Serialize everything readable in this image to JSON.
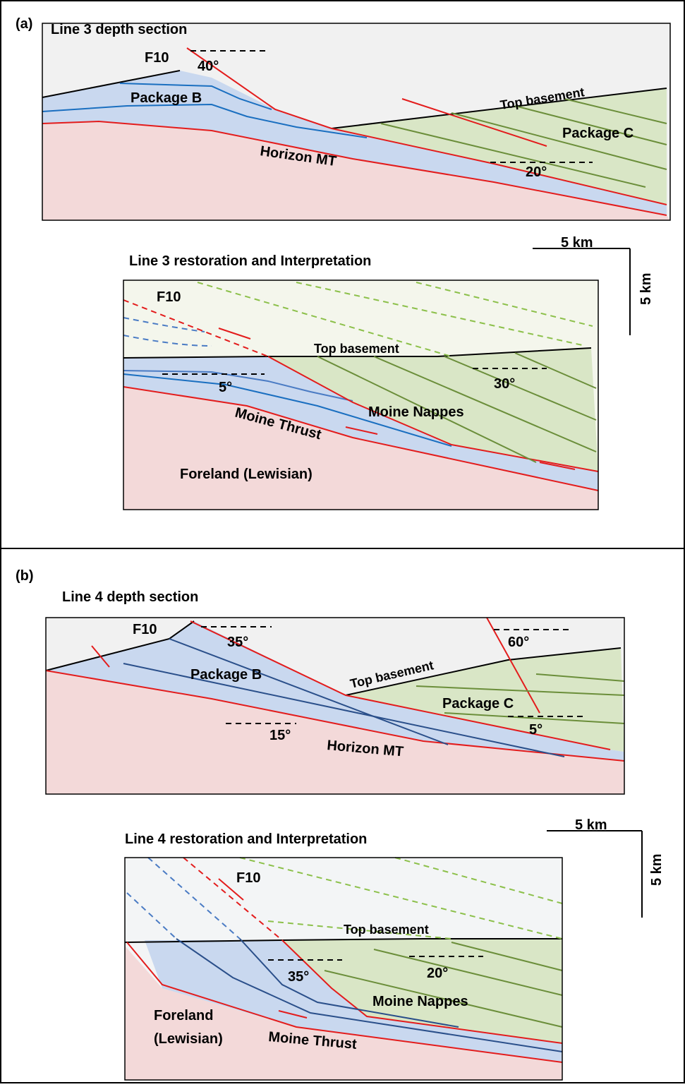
{
  "panels": [
    {
      "label": "(a)",
      "depth_section": {
        "title": "Line 3 depth section",
        "labels": [
          "F10",
          "40°",
          "Package B",
          "Top basement",
          "Package C",
          "Horizon MT",
          "20°"
        ]
      },
      "restoration": {
        "title": "Line 3 restoration and Interpretation",
        "labels": [
          "F10",
          "Top basement",
          "5°",
          "30°",
          "Moine Nappes",
          "Moine Thrust",
          "Foreland (Lewisian)"
        ]
      },
      "scale": {
        "horizontal": "5 km",
        "vertical": "5 km"
      }
    },
    {
      "label": "(b)",
      "depth_section": {
        "title": "Line 4 depth section",
        "labels": [
          "F10",
          "35°",
          "60°",
          "Package B",
          "Top basement",
          "Package C",
          "15°",
          "5°",
          "Horizon MT"
        ]
      },
      "restoration": {
        "title": "Line 4 restoration and Interpretation",
        "labels": [
          "F10",
          "Top basement",
          "35°",
          "20°",
          "Moine Nappes",
          "Foreland",
          "(Lewisian)",
          "Moine Thrust"
        ]
      },
      "scale": {
        "horizontal": "5 km",
        "vertical": "5 km"
      }
    }
  ]
}
